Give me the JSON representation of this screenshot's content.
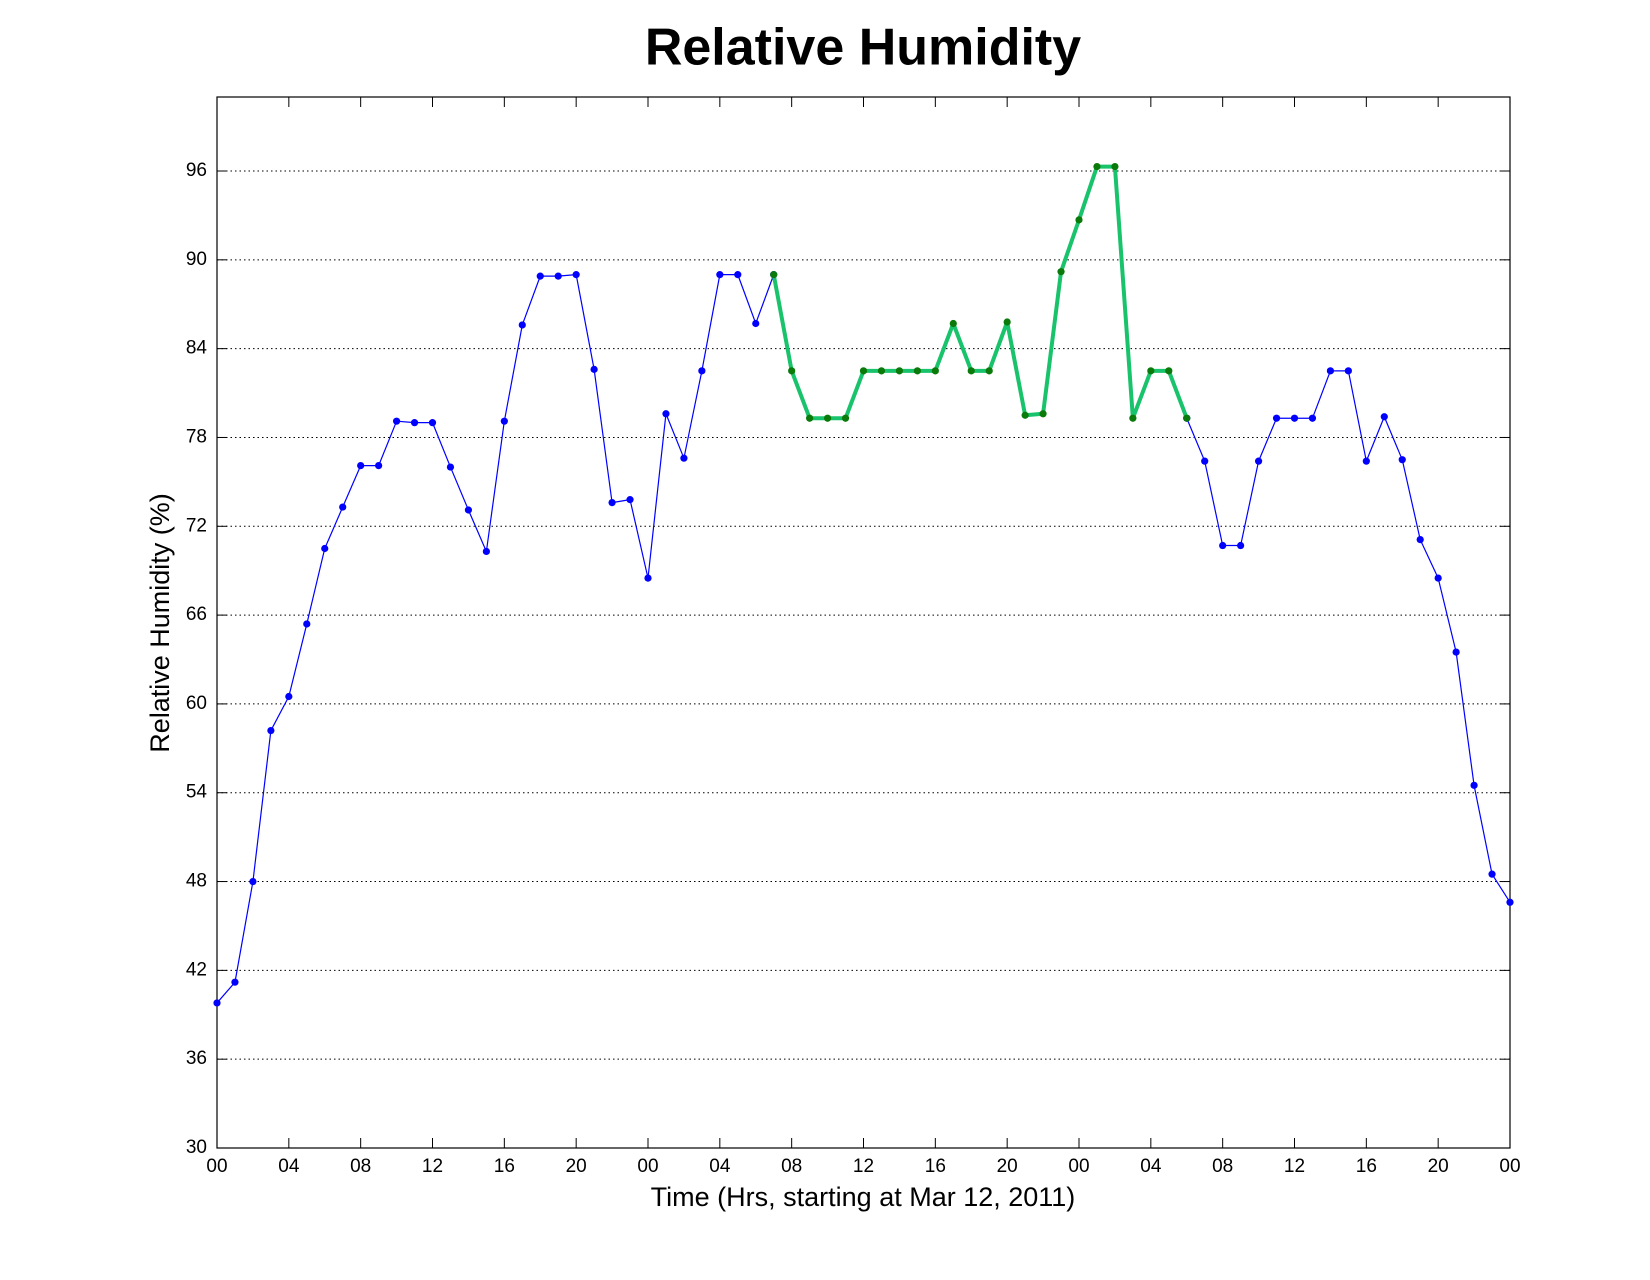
{
  "chart_data": {
    "type": "line",
    "title": "Relative Humidity",
    "x_label": "Time (Hrs, starting at Mar 12, 2011)",
    "y_label": "Relative Humidity (%)",
    "x": [
      0,
      1,
      2,
      3,
      4,
      5,
      6,
      7,
      8,
      9,
      10,
      11,
      12,
      13,
      14,
      15,
      16,
      17,
      18,
      19,
      20,
      21,
      22,
      23,
      24,
      25,
      26,
      27,
      28,
      29,
      30,
      31,
      32,
      33,
      34,
      35,
      36,
      37,
      38,
      39,
      40,
      41,
      42,
      43,
      44,
      45,
      46,
      47,
      48,
      49,
      50,
      51,
      52,
      53,
      54,
      55,
      56,
      57,
      58,
      59,
      60,
      61,
      62,
      63,
      64,
      65,
      66,
      67,
      68,
      69,
      70,
      71,
      72
    ],
    "series": [
      {
        "color": "#0000ff",
        "marker_color": "#0000ff",
        "line_width": 1.2,
        "values": [
          39.8,
          41.2,
          48.0,
          58.2,
          60.5,
          65.4,
          70.5,
          73.3,
          76.1,
          76.1,
          79.1,
          79.0,
          79.0,
          76.0,
          73.1,
          70.3,
          79.1,
          85.6,
          88.9,
          88.9,
          89.0,
          82.6,
          73.6,
          73.8,
          68.5,
          79.6,
          76.6,
          82.5,
          89.0,
          89.0,
          85.7,
          89.0,
          null,
          null,
          null,
          null,
          null,
          null,
          null,
          null,
          null,
          null,
          null,
          null,
          null,
          null,
          null,
          null,
          null,
          null,
          null,
          null,
          null,
          null,
          79.3,
          76.4,
          70.7,
          70.7,
          76.4,
          79.3,
          79.3,
          79.3,
          82.5,
          82.5,
          76.4,
          79.4,
          76.5,
          71.1,
          68.5,
          63.5,
          54.5,
          48.5,
          46.6
        ]
      },
      {
        "color": "#19c36b",
        "marker_color": "#0a7a0a",
        "line_width": 4,
        "values": [
          null,
          null,
          null,
          null,
          null,
          null,
          null,
          null,
          null,
          null,
          null,
          null,
          null,
          null,
          null,
          null,
          null,
          null,
          null,
          null,
          null,
          null,
          null,
          null,
          null,
          null,
          null,
          null,
          null,
          null,
          null,
          89.0,
          82.5,
          79.3,
          79.3,
          79.3,
          82.5,
          82.5,
          82.5,
          82.5,
          82.5,
          85.7,
          82.5,
          82.5,
          85.8,
          79.5,
          79.6,
          89.2,
          92.7,
          96.3,
          96.3,
          79.3,
          82.5,
          82.5,
          79.3,
          null,
          null,
          null,
          null,
          null,
          null,
          null,
          null,
          null,
          null,
          null,
          null,
          null,
          null,
          null,
          null,
          null,
          null
        ]
      }
    ],
    "xlim": [
      0,
      72
    ],
    "ylim": [
      30,
      101
    ],
    "xticks": [
      {
        "value": 0,
        "label": "00"
      },
      {
        "value": 4,
        "label": "04"
      },
      {
        "value": 8,
        "label": "08"
      },
      {
        "value": 12,
        "label": "12"
      },
      {
        "value": 16,
        "label": "16"
      },
      {
        "value": 20,
        "label": "20"
      },
      {
        "value": 24,
        "label": "00"
      },
      {
        "value": 28,
        "label": "04"
      },
      {
        "value": 32,
        "label": "08"
      },
      {
        "value": 36,
        "label": "12"
      },
      {
        "value": 40,
        "label": "16"
      },
      {
        "value": 44,
        "label": "20"
      },
      {
        "value": 48,
        "label": "00"
      },
      {
        "value": 52,
        "label": "04"
      },
      {
        "value": 56,
        "label": "08"
      },
      {
        "value": 60,
        "label": "12"
      },
      {
        "value": 64,
        "label": "16"
      },
      {
        "value": 68,
        "label": "20"
      },
      {
        "value": 72,
        "label": "00"
      }
    ],
    "yticks": [
      30,
      36,
      42,
      48,
      54,
      60,
      66,
      72,
      78,
      84,
      90,
      96
    ],
    "grid": "y"
  }
}
